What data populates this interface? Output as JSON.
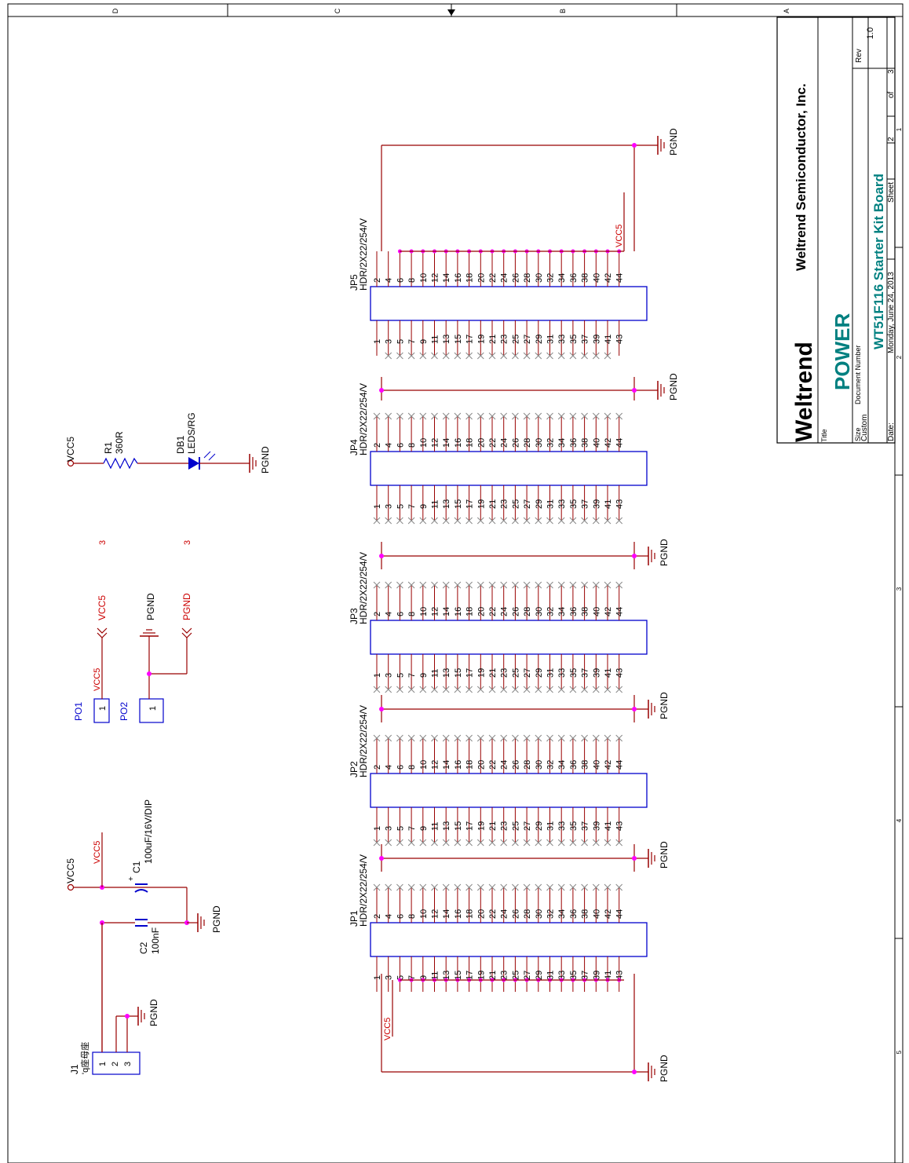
{
  "colors": {
    "wire": "#990000",
    "part": "#0000cc",
    "net": "#cc0000",
    "junction": "#ff00ff",
    "text": "#000000",
    "border": "#000000"
  },
  "border_letters": [
    "D",
    "C",
    "B",
    "A"
  ],
  "border_numbers": [
    "1",
    "2",
    "3",
    "4",
    "5"
  ],
  "headers": [
    {
      "ref": "JP5",
      "value": "HDR/2X22/254/V"
    },
    {
      "ref": "JP4",
      "value": "HDR/2X22/254/V"
    },
    {
      "ref": "JP3",
      "value": "HDR/2X22/254/V"
    },
    {
      "ref": "JP2",
      "value": "HDR/2X22/254/V"
    },
    {
      "ref": "JP1",
      "value": "HDR/2X22/254/V"
    }
  ],
  "pins_odd": [
    "1",
    "3",
    "5",
    "7",
    "9",
    "11",
    "13",
    "15",
    "17",
    "19",
    "21",
    "23",
    "25",
    "27",
    "29",
    "31",
    "33",
    "35",
    "37",
    "39",
    "41",
    "43"
  ],
  "pins_even": [
    "2",
    "4",
    "6",
    "8",
    "10",
    "12",
    "14",
    "16",
    "18",
    "20",
    "22",
    "24",
    "26",
    "28",
    "30",
    "32",
    "34",
    "36",
    "38",
    "40",
    "42",
    "44"
  ],
  "nets": {
    "vcc": "VCC5",
    "gnd": "PGND"
  },
  "led_circuit": {
    "r_ref": "R1",
    "r_value": "360R",
    "d_ref": "DB1",
    "d_value": "LEDS/RG",
    "vcc": "VCC5",
    "gnd": "PGND"
  },
  "ports": {
    "po1": "PO1",
    "po2": "PO2",
    "pin": "1",
    "vcc": "VCC5",
    "gnd": "PGND",
    "page_ref": "3"
  },
  "capacitors": {
    "c1_ref": "C1",
    "c1_value": "100uF/16V/DIP",
    "c2_ref": "C2",
    "c2_value": "100nF",
    "vcc": "VCC5",
    "gnd": "PGND"
  },
  "connector": {
    "ref": "J1",
    "value": "'q座母座",
    "pins": [
      "1",
      "2",
      "3"
    ],
    "gnd": "PGND"
  },
  "title_block": {
    "company": "Weltrend Semiconductor, Inc.",
    "logo": "Weltrend",
    "title_label": "Title",
    "title": "POWER",
    "size_label": "Size",
    "size": "Custom",
    "docnum_label": "Document Number",
    "docnum": "WT51F116 Starter Kit Board",
    "rev_label": "Rev",
    "rev": "1.0",
    "date_label": "Date:",
    "date": "Monday, June 24, 2013",
    "sheet_label": "Sheet",
    "sheet": "2",
    "of_label": "of",
    "of": "3"
  }
}
